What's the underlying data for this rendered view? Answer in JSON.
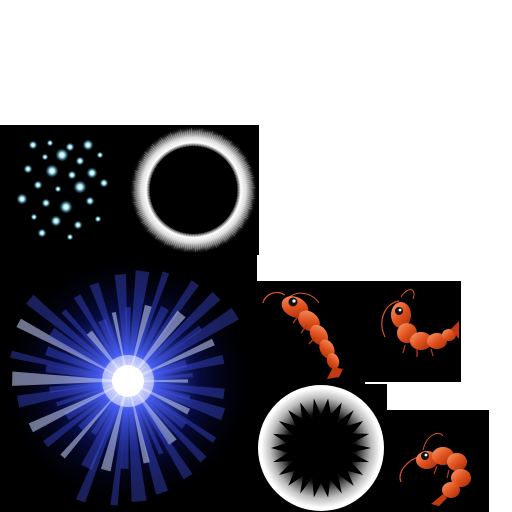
{
  "sheet": {
    "background": "#ffffff",
    "tiles": [
      {
        "name": "sparkles-sprite",
        "icon": "sparkle-stars-icon",
        "color": "#9fe6ff"
      },
      {
        "name": "white-ring-sprite",
        "icon": "glow-ring-icon",
        "color": "#ffffff"
      },
      {
        "name": "blue-burst-sprite",
        "icon": "light-burst-icon",
        "color": "#2b3cff"
      },
      {
        "name": "shrimp-sprite-a",
        "icon": "shrimp-icon",
        "color": "#e0511d"
      },
      {
        "name": "shrimp-sprite-b",
        "icon": "shrimp-icon",
        "color": "#e0511d"
      },
      {
        "name": "dark-ring-sprite",
        "icon": "spiked-ring-icon",
        "color": "#ffffff"
      },
      {
        "name": "shrimp-sprite-c",
        "icon": "shrimp-icon",
        "color": "#e0511d"
      }
    ]
  }
}
